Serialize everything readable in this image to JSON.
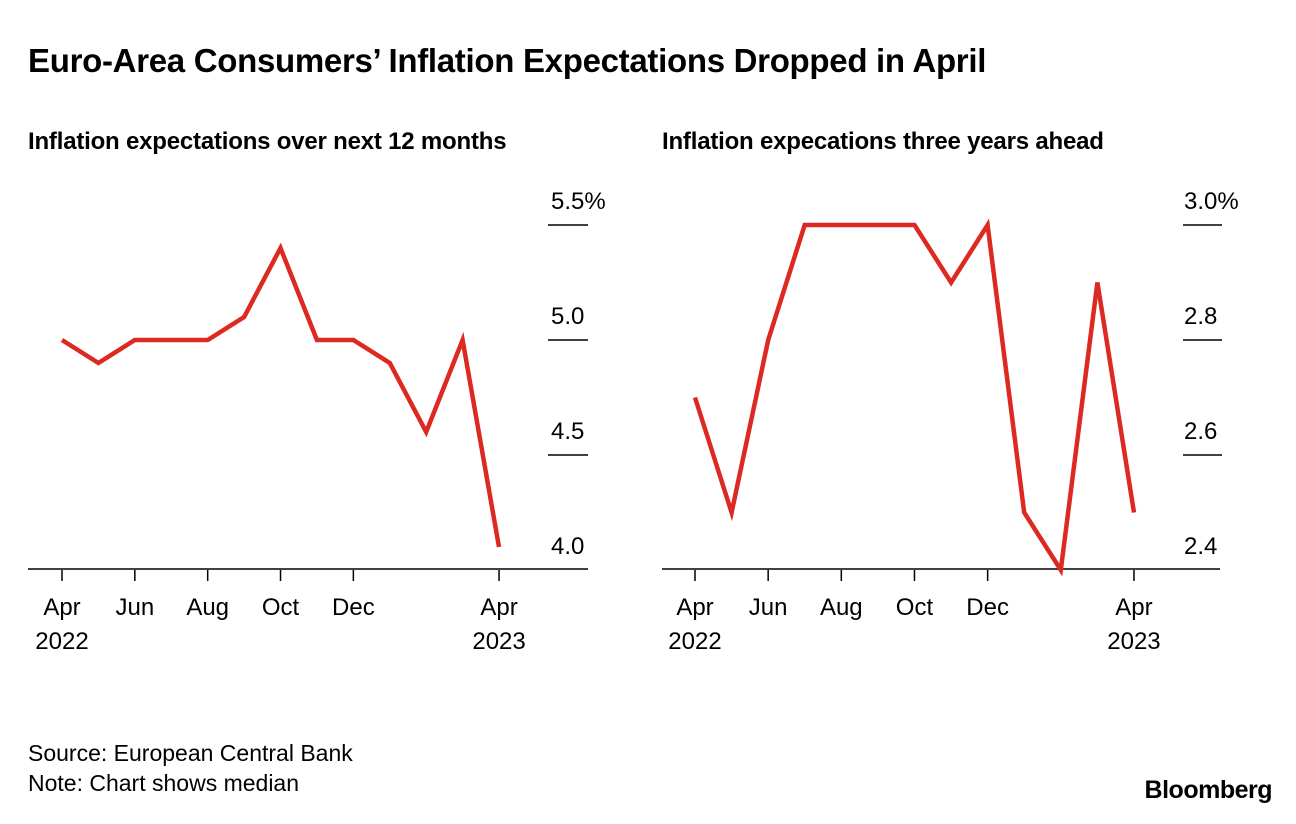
{
  "title": "Euro-Area Consumers’ Inflation Expectations Dropped in April",
  "source": "Source: European Central Bank",
  "note": "Note: Chart shows median",
  "logo": "Bloomberg",
  "line_color": "#dc2a22",
  "chart_data": [
    {
      "type": "line",
      "title": "Inflation expectations over next 12 months",
      "x": [
        "2022-04",
        "2022-05",
        "2022-06",
        "2022-07",
        "2022-08",
        "2022-09",
        "2022-10",
        "2022-11",
        "2022-12",
        "2023-01",
        "2023-02",
        "2023-03",
        "2023-04"
      ],
      "values": [
        5.0,
        4.9,
        5.0,
        5.0,
        5.0,
        5.1,
        5.4,
        5.0,
        5.0,
        4.9,
        4.6,
        5.0,
        4.1
      ],
      "ylim": [
        4.0,
        5.5
      ],
      "y_ticks": [
        "4.0",
        "4.5",
        "5.0",
        "5.5%"
      ],
      "x_ticks": [
        {
          "label": "Apr",
          "sub": "2022"
        },
        {
          "label": "Jun",
          "sub": ""
        },
        {
          "label": "Aug",
          "sub": ""
        },
        {
          "label": "Oct",
          "sub": ""
        },
        {
          "label": "Dec",
          "sub": ""
        },
        {
          "label": "Apr",
          "sub": "2023"
        }
      ],
      "y_axis_side": "right"
    },
    {
      "type": "line",
      "title": "Inflation expecations three years ahead",
      "x": [
        "2022-04",
        "2022-05",
        "2022-06",
        "2022-07",
        "2022-08",
        "2022-09",
        "2022-10",
        "2022-11",
        "2022-12",
        "2023-01",
        "2023-02",
        "2023-03",
        "2023-04"
      ],
      "values": [
        2.7,
        2.5,
        2.8,
        3.0,
        3.0,
        3.0,
        3.0,
        2.9,
        3.0,
        2.5,
        2.4,
        2.9,
        2.5
      ],
      "ylim": [
        2.4,
        3.0
      ],
      "y_ticks": [
        "2.4",
        "2.6",
        "2.8",
        "3.0%"
      ],
      "x_ticks": [
        {
          "label": "Apr",
          "sub": "2022"
        },
        {
          "label": "Jun",
          "sub": ""
        },
        {
          "label": "Aug",
          "sub": ""
        },
        {
          "label": "Oct",
          "sub": ""
        },
        {
          "label": "Dec",
          "sub": ""
        },
        {
          "label": "Apr",
          "sub": "2023"
        }
      ],
      "y_axis_side": "right"
    }
  ]
}
